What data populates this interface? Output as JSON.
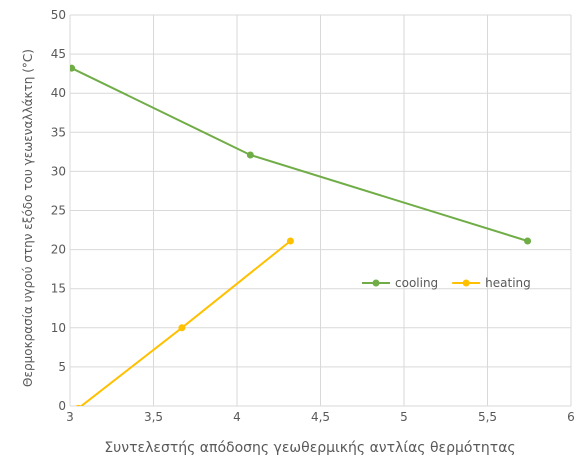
{
  "chart_data": {
    "type": "line",
    "x_label": "Συντελεστής απόδοσης γεωθερμικής αντλίας θερμότητας",
    "y_label": "Θερμοκρασία υγρού στην εξόδο του γεωεναλλάκτη (°C)",
    "xlim": [
      3,
      6
    ],
    "xticks": [
      3,
      {
        "value": 3.5,
        "label": "3,5"
      },
      4,
      {
        "value": 4.5,
        "label": "4,5"
      },
      5,
      {
        "value": 5.5,
        "label": "5,5"
      },
      6
    ],
    "ylim": [
      0,
      50
    ],
    "yticks": [
      0,
      5,
      10,
      15,
      20,
      25,
      30,
      35,
      40,
      45,
      50
    ],
    "grid": true,
    "legend": "right",
    "series": [
      {
        "name": "cooling",
        "color": "#70ad47",
        "x": [
          3.01,
          4.08,
          5.74
        ],
        "values": [
          43.2,
          32.1,
          21.1
        ]
      },
      {
        "name": "heating",
        "color": "#ffc000",
        "x": [
          3.05,
          3.67,
          4.32
        ],
        "values": [
          -0.3,
          10.0,
          21.1
        ]
      }
    ]
  }
}
